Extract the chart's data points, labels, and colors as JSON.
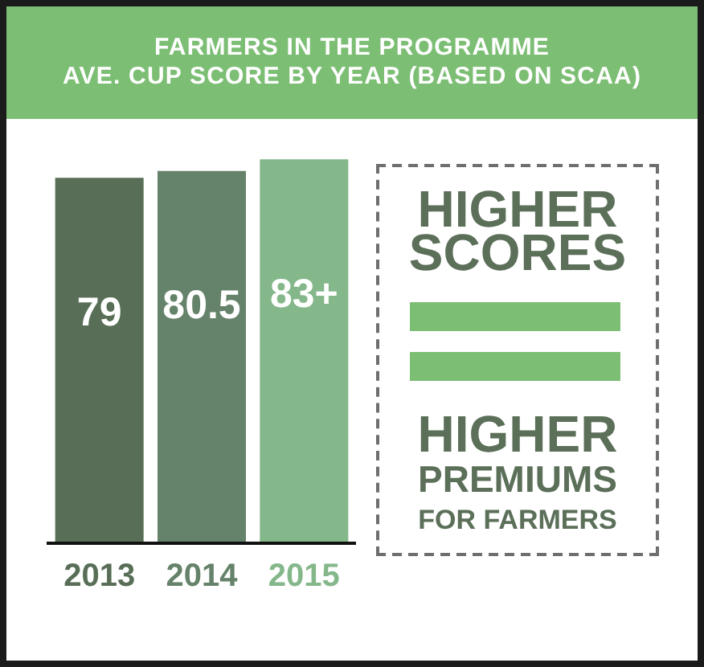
{
  "chart_data": {
    "type": "bar",
    "title": "FARMERS IN THE PROGRAMME",
    "subtitle": "AVE. CUP SCORE BY YEAR (BASED ON SCAA)",
    "categories": [
      "2013",
      "2014",
      "2015"
    ],
    "values": [
      79,
      80.5,
      83
    ],
    "value_labels": [
      "79",
      "80.5",
      "83+"
    ],
    "colors": [
      "#586e56",
      "#65826a",
      "#84b78a"
    ],
    "tick_labels": "x",
    "annotations": [
      "HIGHER",
      "SCORES",
      "HIGHER",
      "PREMIUMS",
      "FOR FARMERS"
    ]
  }
}
